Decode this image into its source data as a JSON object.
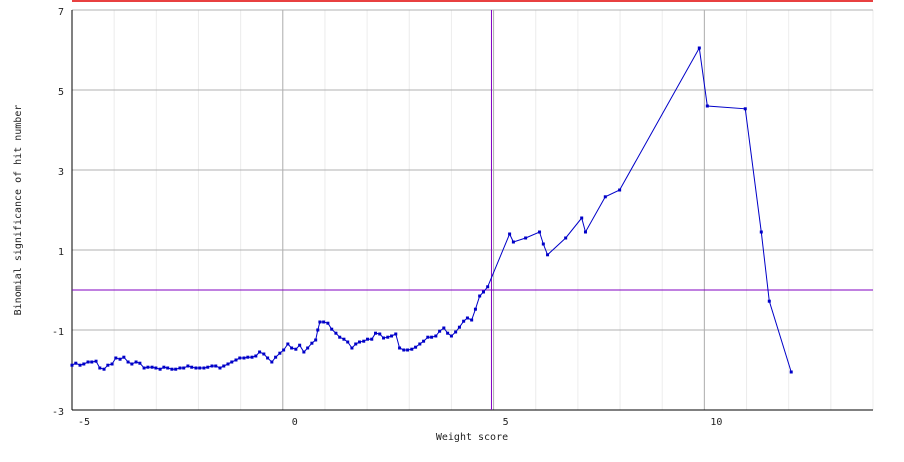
{
  "chart_data": {
    "type": "line",
    "xlabel": "Weight score",
    "ylabel": "Binomial significance of hit number",
    "xlim": [
      -5,
      14
    ],
    "ylim": [
      -3,
      7
    ],
    "xticks": [
      -5,
      0,
      5,
      10
    ],
    "yticks": [
      7,
      5,
      3,
      1,
      -1,
      -3
    ],
    "grid": true,
    "minor_grid": true,
    "vline": 4.95,
    "hline": 0,
    "upper_line": 7.25,
    "vline_color": "#8000c0",
    "upper_line_color": "#e00000",
    "x": [
      -5.0,
      -4.91,
      -4.81,
      -4.72,
      -4.62,
      -4.53,
      -4.43,
      -4.34,
      -4.24,
      -4.15,
      -4.05,
      -3.96,
      -3.86,
      -3.77,
      -3.67,
      -3.58,
      -3.48,
      -3.39,
      -3.29,
      -3.2,
      -3.1,
      -3.01,
      -2.91,
      -2.82,
      -2.73,
      -2.63,
      -2.54,
      -2.44,
      -2.35,
      -2.25,
      -2.16,
      -2.06,
      -1.97,
      -1.87,
      -1.78,
      -1.68,
      -1.59,
      -1.49,
      -1.4,
      -1.3,
      -1.21,
      -1.11,
      -1.02,
      -0.92,
      -0.83,
      -0.73,
      -0.64,
      -0.55,
      -0.45,
      -0.36,
      -0.26,
      -0.17,
      -0.07,
      0.02,
      0.12,
      0.21,
      0.31,
      0.4,
      0.5,
      0.59,
      0.69,
      0.78,
      0.83,
      0.88,
      0.97,
      1.07,
      1.16,
      1.26,
      1.35,
      1.45,
      1.54,
      1.64,
      1.73,
      1.82,
      1.92,
      2.01,
      2.11,
      2.2,
      2.3,
      2.39,
      2.49,
      2.58,
      2.68,
      2.77,
      2.87,
      2.96,
      3.06,
      3.15,
      3.25,
      3.34,
      3.44,
      3.53,
      3.63,
      3.72,
      3.82,
      3.91,
      4.0,
      4.1,
      4.19,
      4.29,
      4.38,
      4.48,
      4.57,
      4.67,
      4.76,
      4.86,
      5.38,
      5.47,
      5.76,
      6.09,
      6.18,
      6.28,
      6.71,
      7.09,
      7.18,
      7.65,
      7.99,
      9.88,
      10.07,
      10.97,
      11.35,
      11.54,
      12.06
    ],
    "series": [
      {
        "color": "#0000c8",
        "values": [
          -1.88,
          -1.83,
          -1.88,
          -1.85,
          -1.8,
          -1.8,
          -1.78,
          -1.95,
          -1.98,
          -1.88,
          -1.85,
          -1.7,
          -1.73,
          -1.68,
          -1.8,
          -1.85,
          -1.8,
          -1.83,
          -1.95,
          -1.93,
          -1.93,
          -1.95,
          -1.98,
          -1.93,
          -1.95,
          -1.98,
          -1.98,
          -1.95,
          -1.95,
          -1.9,
          -1.93,
          -1.95,
          -1.95,
          -1.95,
          -1.93,
          -1.9,
          -1.9,
          -1.95,
          -1.9,
          -1.85,
          -1.8,
          -1.75,
          -1.7,
          -1.7,
          -1.68,
          -1.68,
          -1.65,
          -1.55,
          -1.6,
          -1.7,
          -1.8,
          -1.68,
          -1.58,
          -1.5,
          -1.35,
          -1.45,
          -1.48,
          -1.38,
          -1.55,
          -1.45,
          -1.33,
          -1.25,
          -1.0,
          -0.8,
          -0.8,
          -0.83,
          -0.98,
          -1.08,
          -1.18,
          -1.23,
          -1.3,
          -1.45,
          -1.35,
          -1.3,
          -1.28,
          -1.23,
          -1.23,
          -1.08,
          -1.1,
          -1.2,
          -1.18,
          -1.15,
          -1.1,
          -1.45,
          -1.5,
          -1.5,
          -1.48,
          -1.43,
          -1.35,
          -1.28,
          -1.18,
          -1.18,
          -1.15,
          -1.03,
          -0.95,
          -1.08,
          -1.15,
          -1.05,
          -0.93,
          -0.78,
          -0.7,
          -0.75,
          -0.48,
          -0.15,
          -0.05,
          0.08,
          1.4,
          1.2,
          1.3,
          1.45,
          1.15,
          0.88,
          1.3,
          1.8,
          1.45,
          2.33,
          2.5,
          6.05,
          4.6,
          4.53,
          1.45,
          -0.28,
          -2.05
        ]
      }
    ]
  }
}
